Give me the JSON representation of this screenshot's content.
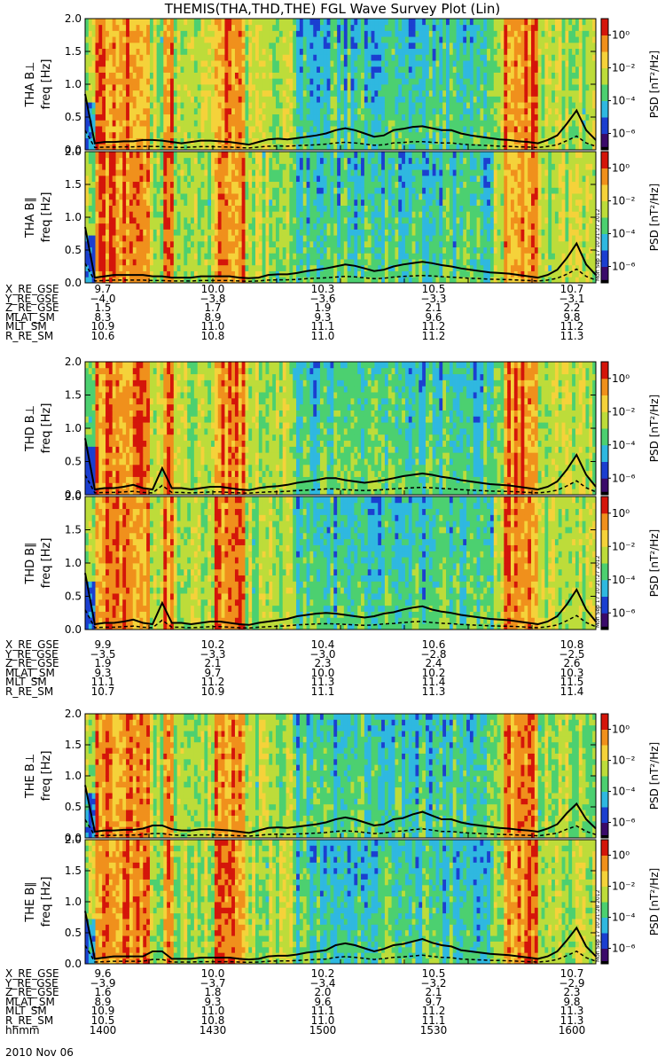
{
  "title": "THEMIS(THA,THD,THE) FGL Wave Survey Plot (Lin)",
  "date_label": "2010 Nov 06",
  "colorbar": {
    "label": "PSD [nT²/Hz]",
    "ticks": [
      "10⁰",
      "10⁻²",
      "10⁻⁴",
      "10⁻⁶"
    ],
    "tick_exponents": [
      0,
      -2,
      -4,
      -6
    ],
    "range_exponent": [
      -7,
      1
    ]
  },
  "colors": {
    "red": "#d4150a",
    "orange": "#f0901c",
    "yellow": "#f5d23a",
    "lime": "#bddc3a",
    "green": "#4cd070",
    "cyan": "#2fb8e0",
    "blue": "#1b3fd0",
    "purple": "#3a0a6a",
    "black": "#000000"
  },
  "chart_data": [
    {
      "type": "heatmap",
      "probe": "THA",
      "component": "B⊥",
      "ylabel": "THA B⊥",
      "ylabel2": "freq [Hz]",
      "yticks": [
        "0.0",
        "0.5",
        "1.0",
        "1.5",
        "2.0"
      ],
      "ylim": [
        0,
        2
      ],
      "x_time": [
        "1400",
        "1600"
      ],
      "stamp": "Mon Sep 17 10:21:27 2012",
      "line_max": [
        0.85,
        0.1,
        0.12,
        0.12,
        0.13,
        0.13,
        0.15,
        0.15,
        0.14,
        0.12,
        0.1,
        0.12,
        0.14,
        0.14,
        0.13,
        0.12,
        0.1,
        0.08,
        0.12,
        0.16,
        0.17,
        0.16,
        0.18,
        0.2,
        0.22,
        0.25,
        0.3,
        0.33,
        0.3,
        0.25,
        0.2,
        0.22,
        0.3,
        0.32,
        0.35,
        0.36,
        0.33,
        0.3,
        0.3,
        0.25,
        0.22,
        0.2,
        0.18,
        0.16,
        0.15,
        0.13,
        0.12,
        0.1,
        0.15,
        0.22,
        0.4,
        0.6,
        0.3,
        0.15
      ]
    },
    {
      "type": "heatmap",
      "probe": "THA",
      "component": "B∥",
      "ylabel": "THA B∥",
      "ylabel2": "freq [Hz]",
      "yticks": [
        "0.0",
        "0.5",
        "1.0",
        "1.5",
        "2.0"
      ],
      "ylim": [
        0,
        2
      ],
      "x_time": [
        "1400",
        "1600"
      ],
      "stamp": "Mon Sep 17 10:21:27 2012",
      "line_max": [
        0.85,
        0.08,
        0.1,
        0.12,
        0.12,
        0.12,
        0.12,
        0.1,
        0.1,
        0.08,
        0.08,
        0.08,
        0.1,
        0.1,
        0.1,
        0.1,
        0.08,
        0.07,
        0.08,
        0.12,
        0.13,
        0.13,
        0.15,
        0.18,
        0.2,
        0.22,
        0.25,
        0.28,
        0.26,
        0.22,
        0.18,
        0.2,
        0.25,
        0.28,
        0.3,
        0.32,
        0.3,
        0.27,
        0.25,
        0.22,
        0.2,
        0.18,
        0.16,
        0.15,
        0.14,
        0.12,
        0.1,
        0.08,
        0.12,
        0.2,
        0.38,
        0.6,
        0.28,
        0.12
      ]
    },
    {
      "type": "heatmap",
      "probe": "THD",
      "component": "B⊥",
      "ylabel": "THD B⊥",
      "ylabel2": "freq [Hz]",
      "yticks": [
        "0.0",
        "0.5",
        "1.0",
        "1.5",
        "2.0"
      ],
      "ylim": [
        0,
        2
      ],
      "x_time": [
        "1400",
        "1600"
      ],
      "stamp": "Mon Sep 17 10:21:27 2012",
      "line_max": [
        0.85,
        0.08,
        0.1,
        0.1,
        0.12,
        0.15,
        0.1,
        0.08,
        0.4,
        0.1,
        0.1,
        0.08,
        0.1,
        0.12,
        0.12,
        0.1,
        0.08,
        0.07,
        0.1,
        0.12,
        0.13,
        0.15,
        0.18,
        0.2,
        0.22,
        0.25,
        0.25,
        0.22,
        0.2,
        0.18,
        0.2,
        0.22,
        0.25,
        0.28,
        0.3,
        0.32,
        0.3,
        0.27,
        0.25,
        0.22,
        0.2,
        0.18,
        0.16,
        0.15,
        0.14,
        0.12,
        0.1,
        0.08,
        0.12,
        0.2,
        0.38,
        0.6,
        0.3,
        0.12
      ]
    },
    {
      "type": "heatmap",
      "probe": "THD",
      "component": "B∥",
      "ylabel": "THD B∥",
      "ylabel2": "freq [Hz]",
      "yticks": [
        "0.0",
        "0.5",
        "1.0",
        "1.5",
        "2.0"
      ],
      "ylim": [
        0,
        2
      ],
      "x_time": [
        "1400",
        "1600"
      ],
      "stamp": "Mon Sep 17 10:21:27 2012",
      "line_max": [
        0.85,
        0.08,
        0.1,
        0.1,
        0.12,
        0.15,
        0.1,
        0.08,
        0.4,
        0.1,
        0.1,
        0.08,
        0.1,
        0.12,
        0.12,
        0.1,
        0.08,
        0.07,
        0.1,
        0.12,
        0.14,
        0.16,
        0.2,
        0.22,
        0.24,
        0.25,
        0.24,
        0.22,
        0.2,
        0.18,
        0.2,
        0.24,
        0.26,
        0.3,
        0.33,
        0.35,
        0.3,
        0.27,
        0.25,
        0.22,
        0.2,
        0.18,
        0.16,
        0.15,
        0.14,
        0.12,
        0.1,
        0.08,
        0.12,
        0.2,
        0.38,
        0.6,
        0.3,
        0.12
      ]
    },
    {
      "type": "heatmap",
      "probe": "THE",
      "component": "B⊥",
      "ylabel": "THE B⊥",
      "ylabel2": "freq [Hz]",
      "yticks": [
        "0.0",
        "0.5",
        "1.0",
        "1.5",
        "2.0"
      ],
      "ylim": [
        0,
        2
      ],
      "x_time": [
        "1400",
        "1600"
      ],
      "stamp": "Mon Sep 17 10:21:28 2012",
      "line_max": [
        0.85,
        0.1,
        0.12,
        0.12,
        0.13,
        0.13,
        0.15,
        0.2,
        0.2,
        0.14,
        0.12,
        0.12,
        0.14,
        0.14,
        0.13,
        0.12,
        0.1,
        0.08,
        0.12,
        0.16,
        0.17,
        0.16,
        0.18,
        0.2,
        0.22,
        0.25,
        0.3,
        0.33,
        0.3,
        0.25,
        0.2,
        0.22,
        0.3,
        0.32,
        0.38,
        0.42,
        0.36,
        0.3,
        0.3,
        0.25,
        0.22,
        0.2,
        0.18,
        0.16,
        0.15,
        0.13,
        0.12,
        0.1,
        0.15,
        0.22,
        0.4,
        0.55,
        0.3,
        0.15
      ]
    },
    {
      "type": "heatmap",
      "probe": "THE",
      "component": "B∥",
      "ylabel": "THE B∥",
      "ylabel2": "freq [Hz]",
      "yticks": [
        "0.0",
        "0.5",
        "1.0",
        "1.5",
        "2.0"
      ],
      "ylim": [
        0,
        2
      ],
      "x_time": [
        "1400",
        "1600"
      ],
      "stamp": "Mon Sep 17 10:21:28 2012",
      "line_max": [
        0.85,
        0.08,
        0.1,
        0.12,
        0.12,
        0.12,
        0.12,
        0.2,
        0.2,
        0.08,
        0.08,
        0.08,
        0.1,
        0.1,
        0.1,
        0.1,
        0.08,
        0.07,
        0.08,
        0.12,
        0.13,
        0.13,
        0.15,
        0.18,
        0.2,
        0.22,
        0.3,
        0.33,
        0.3,
        0.25,
        0.2,
        0.24,
        0.3,
        0.32,
        0.36,
        0.4,
        0.34,
        0.3,
        0.28,
        0.22,
        0.2,
        0.18,
        0.16,
        0.15,
        0.14,
        0.12,
        0.1,
        0.08,
        0.12,
        0.2,
        0.38,
        0.58,
        0.28,
        0.12
      ]
    }
  ],
  "ephemeris": [
    {
      "probe": "THA",
      "rows": [
        {
          "name": "X_RE_GSE",
          "values": [
            "9.7",
            "10.0",
            "10.3",
            "10.5",
            "10.7"
          ]
        },
        {
          "name": "Y_RE_GSE",
          "values": [
            "−4.0",
            "−3.8",
            "−3.6",
            "−3.3",
            "−3.1"
          ]
        },
        {
          "name": "Z_RE_GSE",
          "values": [
            "1.5",
            "1.7",
            "1.9",
            "2.1",
            "2.2"
          ]
        },
        {
          "name": "MLAT_SM",
          "values": [
            "8.3",
            "8.9",
            "9.3",
            "9.6",
            "9.8"
          ]
        },
        {
          "name": "MLT_SM",
          "values": [
            "10.9",
            "11.0",
            "11.1",
            "11.2",
            "11.2"
          ]
        },
        {
          "name": "R_RE_SM",
          "values": [
            "10.6",
            "10.8",
            "11.0",
            "11.2",
            "11.3"
          ]
        }
      ]
    },
    {
      "probe": "THD",
      "rows": [
        {
          "name": "X_RE_GSE",
          "values": [
            "9.9",
            "10.2",
            "10.4",
            "10.6",
            "10.8"
          ]
        },
        {
          "name": "Y_RE_GSE",
          "values": [
            "−3.5",
            "−3.3",
            "−3.0",
            "−2.8",
            "−2.5"
          ]
        },
        {
          "name": "Z_RE_GSE",
          "values": [
            "1.9",
            "2.1",
            "2.3",
            "2.4",
            "2.6"
          ]
        },
        {
          "name": "MLAT_SM",
          "values": [
            "9.3",
            "9.7",
            "10.0",
            "10.2",
            "10.3"
          ]
        },
        {
          "name": "MLT_SM",
          "values": [
            "11.1",
            "11.2",
            "11.3",
            "11.4",
            "11.5"
          ]
        },
        {
          "name": "R_RE_SM",
          "values": [
            "10.7",
            "10.9",
            "11.1",
            "11.3",
            "11.4"
          ]
        }
      ]
    },
    {
      "probe": "THE",
      "rows": [
        {
          "name": "X_RE_GSE",
          "values": [
            "9.6",
            "10.0",
            "10.2",
            "10.5",
            "10.7"
          ]
        },
        {
          "name": "Y_RE_GSE",
          "values": [
            "−3.9",
            "−3.7",
            "−3.4",
            "−3.2",
            "−2.9"
          ]
        },
        {
          "name": "Z_RE_GSE",
          "values": [
            "1.6",
            "1.8",
            "2.0",
            "2.1",
            "2.3"
          ]
        },
        {
          "name": "MLAT_SM",
          "values": [
            "8.9",
            "9.3",
            "9.6",
            "9.7",
            "9.8"
          ]
        },
        {
          "name": "MLT_SM",
          "values": [
            "10.9",
            "11.0",
            "11.1",
            "11.2",
            "11.3"
          ]
        },
        {
          "name": "R_RE_SM",
          "values": [
            "10.5",
            "10.8",
            "11.0",
            "11.1",
            "11.3"
          ]
        },
        {
          "name": "hhmm",
          "values": [
            "1400",
            "1430",
            "1500",
            "1530",
            "1600"
          ]
        }
      ]
    }
  ]
}
